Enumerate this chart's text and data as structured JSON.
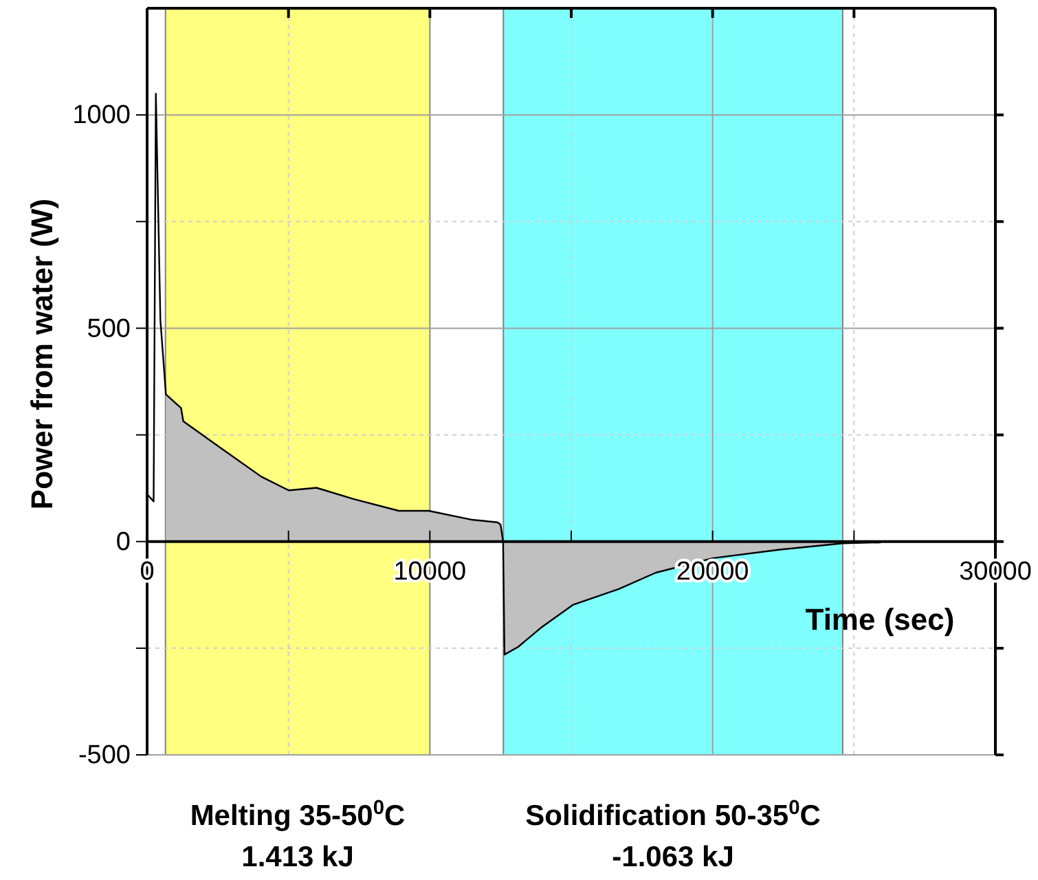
{
  "chart_data": {
    "type": "line",
    "xlabel": "Time (sec)",
    "ylabel": "Power from water (W)",
    "xlim": [
      0,
      30000
    ],
    "ylim": [
      -500,
      1250
    ],
    "xticks": [
      0,
      {
        "value": 5000,
        "label": null
      },
      10000,
      {
        "value": 15000,
        "label": null
      },
      20000,
      {
        "value": 25000,
        "label": null
      },
      30000
    ],
    "yticks": [
      -500,
      {
        "value": -250,
        "label": null
      },
      0,
      {
        "value": 250,
        "label": null
      },
      500,
      {
        "value": 750,
        "label": null
      },
      1000
    ],
    "grid": true,
    "bands": [
      {
        "axis": "x",
        "from": 650,
        "to": 10000,
        "label": "Melting 35-50$^{0}$C\n1.413 kJ",
        "color": "#ffff80"
      },
      {
        "axis": "x",
        "from": 12600,
        "to": 24600,
        "label": "Solidification 50-35$^{0}$C\n-1.063 kJ",
        "color": "#80ffff"
      }
    ],
    "series": [
      {
        "type": "area",
        "color": "#c0c0c0",
        "x": [
          665,
          1200,
          1280,
          2420,
          4040,
          5010,
          5990,
          7280,
          8900,
          9960,
          11500,
          12390,
          12500,
          12590,
          12640,
          13120,
          13930,
          15070,
          16690,
          17990,
          20010,
          22370,
          24610
        ],
        "values": [
          345,
          313,
          282,
          228,
          152,
          120,
          126,
          100,
          72,
          72,
          51,
          45,
          40,
          0,
          -265,
          -247,
          -202,
          -148,
          -111,
          -73,
          -39,
          -19,
          -4
        ]
      },
      {
        "color": "#000000",
        "x": [
          15,
          230,
          310,
          470,
          665,
          1200,
          1280,
          2420,
          4040,
          5010,
          5990,
          7280,
          8900,
          9960,
          11500,
          12390,
          12500,
          12590,
          12640,
          13120,
          13930,
          15070,
          16690,
          17990,
          20010,
          22370,
          24610,
          25940
        ],
        "values": [
          110,
          94,
          1050,
          519,
          345,
          313,
          282,
          228,
          152,
          120,
          126,
          100,
          72,
          72,
          51,
          45,
          40,
          0,
          -265,
          -247,
          -202,
          -148,
          -111,
          -73,
          -39,
          -19,
          -4,
          -2
        ]
      }
    ]
  }
}
